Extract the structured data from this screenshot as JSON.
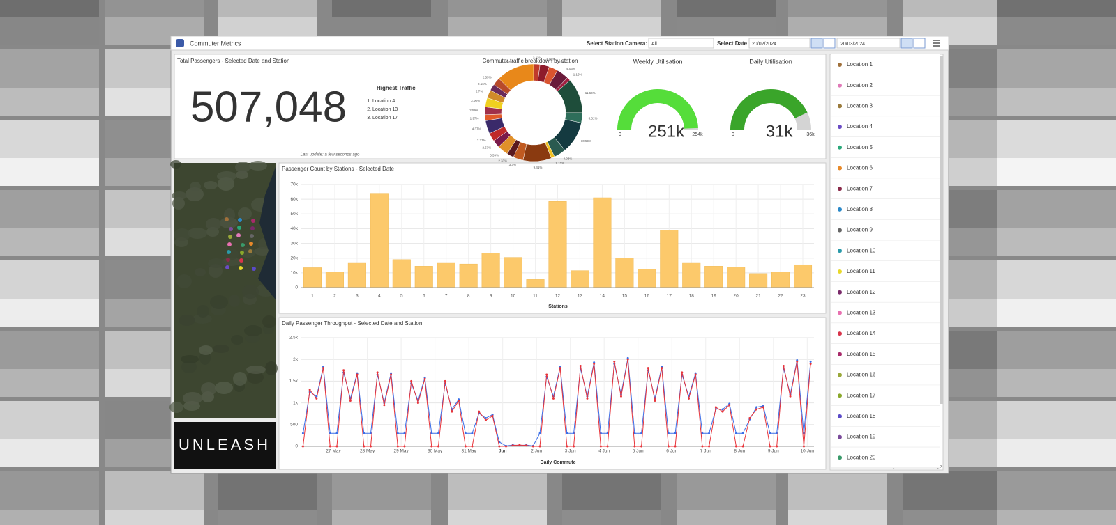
{
  "header": {
    "title": "Commuter Metrics",
    "camera_label": "Select Station Camera:",
    "camera_value": "All",
    "date_label": "Select Date",
    "start_date": "20/02/2024",
    "end_date": "20/03/2024"
  },
  "summary": {
    "title": "Total Passengers - Selected Date and Station",
    "total": "507,048",
    "highest_title": "Highest Traffic",
    "highest": [
      "Location 4",
      "Location 13",
      "Location 17"
    ],
    "last_update": "Last update: a few seconds ago"
  },
  "donut": {
    "type": "pie",
    "title": "Commuter traffic breakdown by station",
    "values": [
      2.11,
      3.08,
      2.97,
      4.03,
      1.15,
      11.66,
      3.31,
      10.59,
      4.03,
      1.15,
      9.41,
      3.3,
      2.33,
      3.59,
      2.53,
      2.77,
      4.37,
      1.97,
      2.59,
      3.06,
      2.7,
      2.16,
      2.55,
      12.59
    ],
    "value_labels": [
      "2.11%",
      "3.08%",
      "2.97%",
      "4.03%",
      "1.15%",
      "11.66%",
      "3.31%",
      "10.59%",
      "4.03%",
      "1.15%",
      "9.41%",
      "3.3%",
      "2.33%",
      "3.59%",
      "2.53%",
      "2.77%",
      "4.37%",
      "1.97%",
      "2.59%",
      "3.06%",
      "2.7%",
      "2.16%",
      "2.55%",
      "12.59%"
    ],
    "colors": [
      "#c0392b",
      "#8e1b2b",
      "#d9542f",
      "#6a1a3a",
      "#a02040",
      "#1e4d3a",
      "#2e6e5a",
      "#143a40",
      "#2a5a50",
      "#f0c020",
      "#8a3a10",
      "#c05a20",
      "#5a1a20",
      "#e0902a",
      "#7a1a4a",
      "#c02a2a",
      "#3a2a6a",
      "#e05a2a",
      "#a0304a",
      "#f0d020",
      "#d08a2a",
      "#6a2a5a",
      "#b84a2a",
      "#e8881a"
    ]
  },
  "gauges": [
    {
      "title": "Weekly Utilisation",
      "value": 251000,
      "value_label": "251k",
      "min": 0,
      "max": 254000,
      "max_label": "254k",
      "color": "#55dd3a"
    },
    {
      "title": "Daily Utilisation",
      "value": 31000,
      "value_label": "31k",
      "min": 0,
      "max": 36000,
      "max_label": "36k",
      "color": "#3aa52a"
    }
  ],
  "bar_chart": {
    "type": "bar",
    "title": "Passenger Count by Stations - Selected Date",
    "categories": [
      "1",
      "2",
      "3",
      "4",
      "5",
      "6",
      "7",
      "8",
      "9",
      "10",
      "11",
      "12",
      "13",
      "14",
      "15",
      "16",
      "17",
      "18",
      "19",
      "20",
      "21",
      "22",
      "23"
    ],
    "values": [
      13500,
      10500,
      17000,
      64000,
      19000,
      14500,
      17000,
      16000,
      23500,
      20500,
      5500,
      58500,
      11500,
      61000,
      20000,
      12500,
      39000,
      17000,
      14500,
      14000,
      9500,
      10500,
      15500
    ],
    "color": "#fcc96b",
    "xlabel": "Stations",
    "ylim": [
      0,
      70000
    ],
    "yticks": [
      0,
      {
        "value": 10000,
        "label": "10k"
      },
      {
        "value": 20000,
        "label": "20k"
      },
      {
        "value": 30000,
        "label": "30k"
      },
      {
        "value": 40000,
        "label": "40k"
      },
      {
        "value": 50000,
        "label": "50k"
      },
      {
        "value": 60000,
        "label": "60k"
      },
      {
        "value": 70000,
        "label": "70k"
      }
    ],
    "grid": true
  },
  "line_chart": {
    "type": "line",
    "title": "Daily Passenger Throughput - Selected Date and Station",
    "xlabel": "Daily Commute",
    "x": [
      0.1,
      0.3,
      0.5,
      0.7,
      0.9,
      1.1,
      1.3,
      1.5,
      1.7,
      1.9,
      2.1,
      2.3,
      2.5,
      2.7,
      2.9,
      3.1,
      3.3,
      3.5,
      3.7,
      3.9,
      4.1,
      4.3,
      4.5,
      4.7,
      4.9,
      5.1,
      5.3,
      5.5,
      5.7,
      5.9,
      6.1,
      6.3,
      6.5,
      6.7,
      6.9,
      7.1,
      7.3,
      7.5,
      7.7,
      7.9,
      8.1,
      8.3,
      8.5,
      8.7,
      8.9,
      9.1,
      9.3,
      9.5,
      9.7,
      9.9,
      10.1,
      10.3,
      10.5,
      10.7,
      10.9,
      11.1,
      11.3,
      11.5,
      11.7,
      11.9,
      12.1,
      12.3,
      12.5,
      12.7,
      12.9,
      13.1,
      13.3,
      13.5,
      13.7,
      13.9,
      14.1,
      14.3,
      14.5,
      14.7,
      14.9,
      15.1
    ],
    "series": [
      {
        "color": "#e8343a",
        "values": [
          0,
          1300,
          1100,
          1800,
          0,
          0,
          1750,
          1050,
          1650,
          0,
          0,
          1700,
          950,
          1650,
          0,
          0,
          1500,
          1000,
          1550,
          0,
          0,
          1500,
          800,
          1050,
          0,
          0,
          800,
          600,
          700,
          0,
          0,
          20,
          30,
          20,
          0,
          0,
          1650,
          1100,
          1800,
          0,
          0,
          1850,
          1100,
          1900,
          0,
          0,
          1950,
          1150,
          2000,
          0,
          0,
          1800,
          1050,
          1800,
          0,
          0,
          1700,
          1100,
          1650,
          0,
          0,
          900,
          800,
          950,
          0,
          0,
          650,
          850,
          900,
          0,
          0,
          1850,
          1150,
          1950,
          0,
          1900
        ]
      },
      {
        "color": "#3a6ee8",
        "values": [
          300,
          1250,
          1150,
          1830,
          300,
          300,
          1700,
          1100,
          1680,
          300,
          300,
          1650,
          1000,
          1680,
          300,
          300,
          1450,
          1050,
          1580,
          300,
          300,
          1450,
          850,
          1080,
          300,
          300,
          760,
          650,
          730,
          100,
          10,
          30,
          20,
          30,
          10,
          300,
          1600,
          1150,
          1830,
          300,
          300,
          1800,
          1150,
          1930,
          300,
          300,
          1900,
          1200,
          2030,
          300,
          300,
          1750,
          1100,
          1830,
          300,
          300,
          1650,
          1150,
          1680,
          300,
          300,
          860,
          850,
          980,
          300,
          300,
          620,
          900,
          930,
          300,
          300,
          1800,
          1200,
          1980,
          300,
          1950
        ]
      }
    ],
    "xlim": [
      0.05,
      15.2
    ],
    "xticks": [
      {
        "value": 1,
        "label": "27 May"
      },
      {
        "value": 2,
        "label": "28 May"
      },
      {
        "value": 3,
        "label": "29 May"
      },
      {
        "value": 4,
        "label": "30 May"
      },
      {
        "value": 5,
        "label": "31 May"
      },
      {
        "value": 6,
        "label": "Jun"
      },
      {
        "value": 7,
        "label": "2 Jun"
      },
      {
        "value": 8,
        "label": "3 Jun"
      },
      {
        "value": 9,
        "label": "4 Jun"
      },
      {
        "value": 10,
        "label": "5 Jun"
      },
      {
        "value": 11,
        "label": "6 Jun"
      },
      {
        "value": 12,
        "label": "7 Jun"
      },
      {
        "value": 13,
        "label": "8 Jun"
      },
      {
        "value": 14,
        "label": "9 Jun"
      },
      {
        "value": 15,
        "label": "10 Jun"
      }
    ],
    "ylim": [
      0,
      2500
    ],
    "yticks": [
      0,
      500,
      {
        "value": 1000,
        "label": "1k"
      },
      {
        "value": 1500,
        "label": "1.5k"
      },
      {
        "value": 2000,
        "label": "2k"
      },
      {
        "value": 2500,
        "label": "2.5k"
      }
    ],
    "grid": true
  },
  "locations": {
    "items": [
      {
        "label": "Location 1",
        "color": "#a0703a"
      },
      {
        "label": "Location 2",
        "color": "#e07ab8"
      },
      {
        "label": "Location 3",
        "color": "#9a7a3a"
      },
      {
        "label": "Location 4",
        "color": "#6a4bc4"
      },
      {
        "label": "Location 5",
        "color": "#2aa87a"
      },
      {
        "label": "Location 6",
        "color": "#e88a2a"
      },
      {
        "label": "Location 7",
        "color": "#8a2a4a"
      },
      {
        "label": "Location 8",
        "color": "#2a88c8"
      },
      {
        "label": "Location 9",
        "color": "#666666"
      },
      {
        "label": "Location 10",
        "color": "#2a9aaa"
      },
      {
        "label": "Location 11",
        "color": "#e8d82a"
      },
      {
        "label": "Location 12",
        "color": "#7a2a6a"
      },
      {
        "label": "Location 13",
        "color": "#e870b0"
      },
      {
        "label": "Location 14",
        "color": "#d8344a"
      },
      {
        "label": "Location 15",
        "color": "#a82a6a"
      },
      {
        "label": "Location 16",
        "color": "#9aa83a"
      },
      {
        "label": "Location 17",
        "color": "#8aa82a"
      },
      {
        "label": "Location 18",
        "color": "#5a4ac8"
      },
      {
        "label": "Location 19",
        "color": "#7a4a9a"
      },
      {
        "label": "Location 20",
        "color": "#3a9a6a"
      }
    ],
    "last_update": "Last update: a few seconds ago"
  },
  "logo": "UNLEASH"
}
